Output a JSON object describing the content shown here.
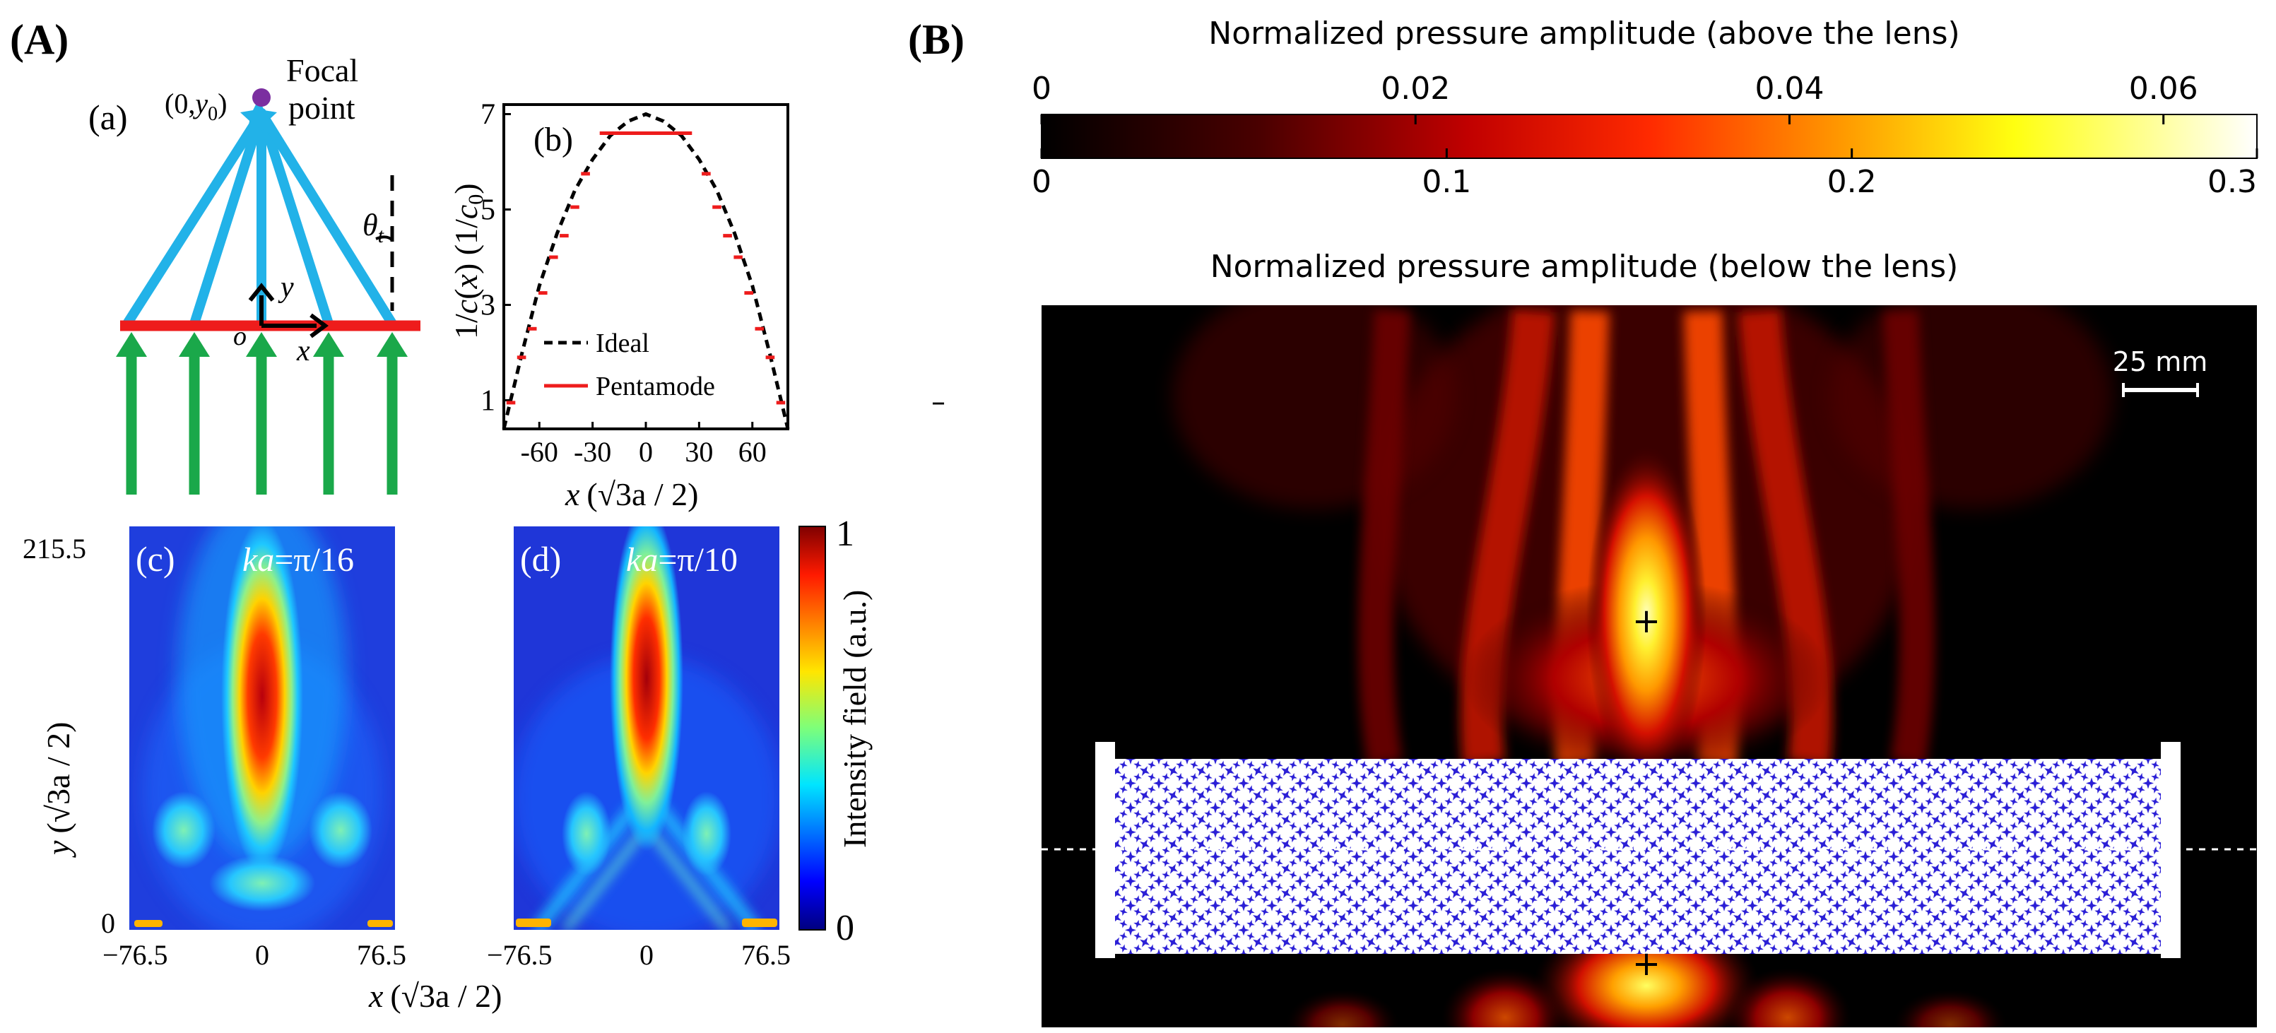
{
  "panel_labels": {
    "A": "(A)",
    "B": "(B)"
  },
  "schematic": {
    "label": "(a)",
    "focus_label_pre": "(0,",
    "focus_label_y": "y",
    "focus_label_sub": "0",
    "focus_label_post": ")",
    "focal_text_1": "Focal",
    "focal_text_2": "point",
    "axis_y": "y",
    "axis_x": "x",
    "origin": "o",
    "theta": "θ",
    "theta_sub": "t",
    "colors": {
      "rays": "#22b2e8",
      "lens": "#ee1c1c",
      "arrows": "#1aa84a",
      "focus": "#7b2fa0"
    }
  },
  "panel_b": {
    "label": "(b)",
    "ylabel_pre": "1/",
    "ylabel_c": "c",
    "ylabel_mid": "(",
    "ylabel_x": "x",
    "ylabel_post": ")  (1/",
    "ylabel_c0": "c",
    "ylabel_sub": "0",
    "ylabel_end": ")",
    "xlabel_x": "x",
    "xlabel_rest": "(√3a / 2)",
    "xticks": [
      "-60",
      "-30",
      "0",
      "30",
      "60"
    ],
    "yticks": [
      "1",
      "3",
      "5",
      "7"
    ],
    "legend": [
      {
        "name": "Ideal",
        "color": "#000000",
        "style": "dashed"
      },
      {
        "name": "Pentamode",
        "color": "#ee1c1c",
        "style": "solid"
      }
    ]
  },
  "chart_data": [
    {
      "type": "line",
      "panel": "(b)",
      "xlabel": "x (√3a/2)",
      "ylabel": "1/c(x) (1/c0)",
      "xlim": [
        -80,
        80
      ],
      "ylim": [
        0.4,
        7.2
      ],
      "series": [
        {
          "name": "Ideal",
          "x": [
            -80,
            -70,
            -60,
            -50,
            -40,
            -30,
            -20,
            -10,
            0,
            10,
            20,
            30,
            40,
            50,
            60,
            70,
            80
          ],
          "y": [
            0.4,
            1.95,
            3.4,
            4.5,
            5.4,
            6.05,
            6.55,
            6.85,
            7.0,
            6.85,
            6.55,
            6.05,
            5.4,
            4.5,
            3.4,
            1.95,
            0.4
          ]
        },
        {
          "name": "Pentamode",
          "x": [
            -76,
            -70,
            -64,
            -58,
            -52,
            -46,
            -40,
            -34,
            0,
            34,
            40,
            46,
            52,
            58,
            64,
            70,
            76
          ],
          "y": [
            0.95,
            1.9,
            2.5,
            3.25,
            4.0,
            4.45,
            5.05,
            5.75,
            6.6,
            5.75,
            5.05,
            4.45,
            4.0,
            3.25,
            2.5,
            1.9,
            0.95
          ]
        }
      ]
    },
    {
      "type": "heatmap",
      "panel": "(c)",
      "title": "ka=π/16",
      "xlabel": "x (√3a/2)",
      "ylabel": "y (√3a/2)",
      "xlim": [
        -76.5,
        76.5
      ],
      "ylim": [
        0,
        215.5
      ],
      "peak": {
        "x": 0,
        "y": 130
      }
    },
    {
      "type": "heatmap",
      "panel": "(d)",
      "title": "ka=π/10",
      "xlabel": "x (√3a/2)",
      "ylabel": "y (√3a/2)",
      "xlim": [
        -76.5,
        76.5
      ],
      "ylim": [
        0,
        215.5
      ],
      "peak": {
        "x": 0,
        "y": 120
      }
    },
    {
      "type": "heatmap",
      "panel": "(B)",
      "title": "Normalized pressure amplitude",
      "above_range": [
        0,
        0.065
      ],
      "below_range": [
        0,
        0.3
      ]
    }
  ],
  "panel_cd": {
    "c_label": "(c)",
    "c_title_k": "ka",
    "c_title_rest": "=π/16",
    "d_label": "(d)",
    "d_title_k": "ka",
    "d_title_rest": "=π/10",
    "ytick_top": "215.5",
    "ytick_bottom": "0",
    "xticks": [
      "−76.5",
      "0",
      "76.5"
    ],
    "ylabel_y": "y",
    "ylabel_rest": "(√3a / 2)",
    "xlabel_x": "x",
    "xlabel_rest": "(√3a / 2)",
    "colorbar_label": "Intensity field (a.u.)",
    "colorbar_ticks": [
      "1",
      "0"
    ]
  },
  "panel_B": {
    "title_above": "Normalized pressure amplitude (above the lens)",
    "title_below": "Normalized pressure amplitude (below the lens)",
    "top_ticks": [
      "0",
      "0.02",
      "0.04",
      "0.06"
    ],
    "bottom_ticks": [
      "0",
      "0.1",
      "0.2",
      "0.3"
    ],
    "scale_bar": "25 mm",
    "focus_marker": "+",
    "dash": "–"
  }
}
